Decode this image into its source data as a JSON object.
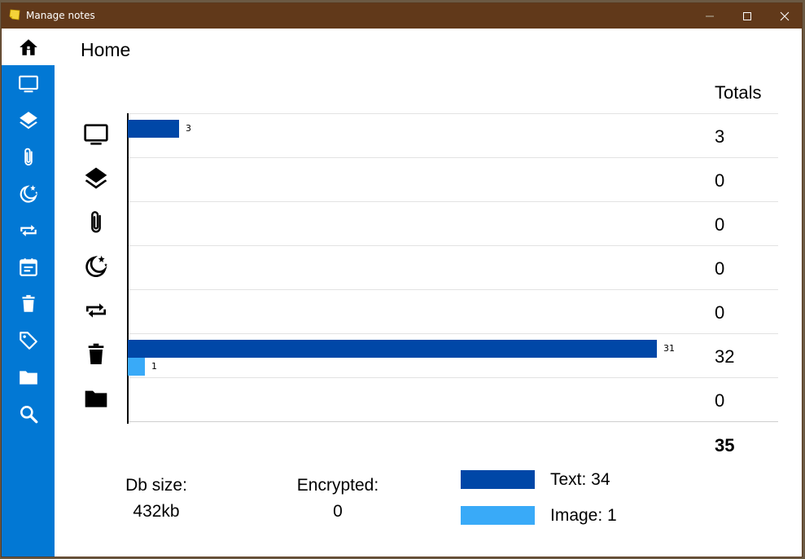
{
  "window": {
    "title": "Manage notes",
    "minimize_label": "Minimize",
    "maximize_label": "Maximize",
    "close_label": "Close"
  },
  "sidebar": {
    "items": [
      {
        "icon": "home-icon",
        "active": true
      },
      {
        "icon": "monitor-icon"
      },
      {
        "icon": "layers-icon"
      },
      {
        "icon": "paperclip-icon"
      },
      {
        "icon": "moon-stars-icon"
      },
      {
        "icon": "repeat-icon"
      },
      {
        "icon": "calendar-note-icon"
      },
      {
        "icon": "trash-icon"
      },
      {
        "icon": "tag-icon"
      },
      {
        "icon": "folder-icon"
      },
      {
        "icon": "search-icon"
      }
    ]
  },
  "page": {
    "title": "Home",
    "totals_header": "Totals",
    "grand_total": "35"
  },
  "colors": {
    "text_series": "#0047a7",
    "image_series": "#39aaf8",
    "sidebar": "#0278d4",
    "titlebar": "#61391a"
  },
  "chart_data": {
    "type": "bar",
    "orientation": "horizontal",
    "categories": [
      "monitor-icon",
      "layers-icon",
      "paperclip-icon",
      "moon-stars-icon",
      "repeat-icon",
      "trash-icon",
      "folder-icon"
    ],
    "series": [
      {
        "name": "Text",
        "values": [
          3,
          0,
          0,
          0,
          0,
          31,
          0
        ]
      },
      {
        "name": "Image",
        "values": [
          0,
          0,
          0,
          0,
          0,
          1,
          0
        ]
      }
    ],
    "xlim": [
      0,
      31
    ],
    "totals": [
      "3",
      "0",
      "0",
      "0",
      "0",
      "32",
      "0"
    ]
  },
  "stats": {
    "db_size_label": "Db size:",
    "db_size_value": "432kb",
    "encrypted_label": "Encrypted:",
    "encrypted_value": "0"
  },
  "legend": {
    "text_label": "Text: 34",
    "image_label": "Image: 1"
  }
}
